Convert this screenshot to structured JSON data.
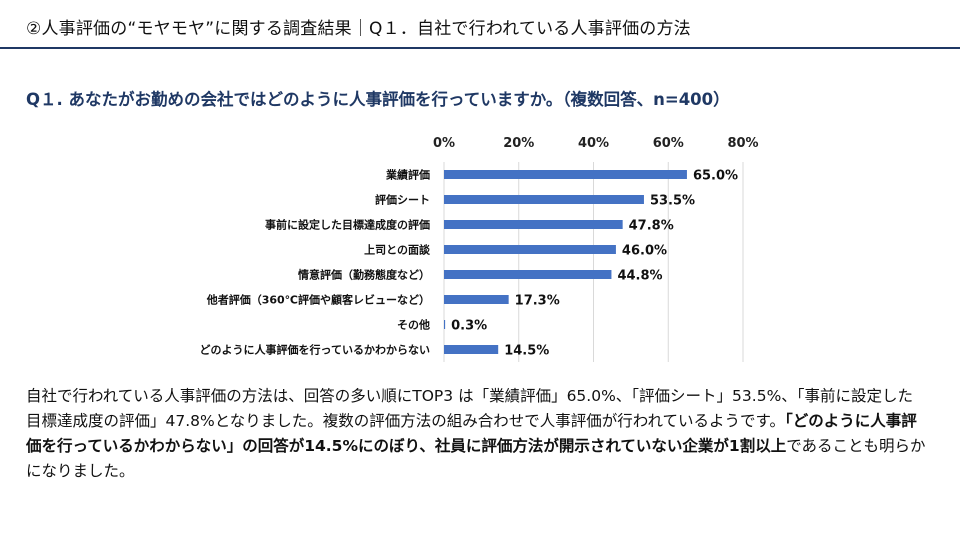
{
  "header": {
    "title": "②人事評価の“モヤモヤ”に関する調査結果｜Q１．自社で行われている人事評価の方法"
  },
  "question": "Q１. あなたがお勤めの会社ではどのように人事評価を行っていますか。（複数回答、n=400）",
  "chart_data": {
    "type": "bar",
    "orientation": "horizontal",
    "categories": [
      "業績評価",
      "評価シート",
      "事前に設定した目標達成度の評価",
      "上司との面談",
      "情意評価（勤務態度など）",
      "他者評価（360℃評価や顧客レビューなど）",
      "その他",
      "どのように人事評価を行っているかわからない"
    ],
    "values": [
      65.0,
      53.5,
      47.8,
      46.0,
      44.8,
      17.3,
      0.3,
      14.5
    ],
    "value_labels": [
      "65.0%",
      "53.5%",
      "47.8%",
      "46.0%",
      "44.8%",
      "17.3%",
      "0.3%",
      "14.5%"
    ],
    "xlim": [
      0,
      80
    ],
    "ticks": [
      "0%",
      "20%",
      "40%",
      "60%",
      "80%"
    ],
    "tick_values": [
      0,
      20,
      40,
      60,
      80
    ],
    "axis_position": "top",
    "grid": true,
    "bar_color": "#4472c4",
    "grid_color": "#d9d9d9"
  },
  "summary": {
    "p1": "自社で行われている人事評価の方法は、回答の多い順にTOP3 は「業績評価」65.0%、「評価シート」53.5%、「事前に設定した目標達成度の評価」47.8%となりました。複数の評価方法の組み合わせで人事評価が行われているようです。",
    "b1": "「どのように人事評価を行っているかわからない」の回答が14.5%にのぼり、社員に評価方法が開示されていない企業が1割以上",
    "p2": "であることも明らかになりました。"
  }
}
